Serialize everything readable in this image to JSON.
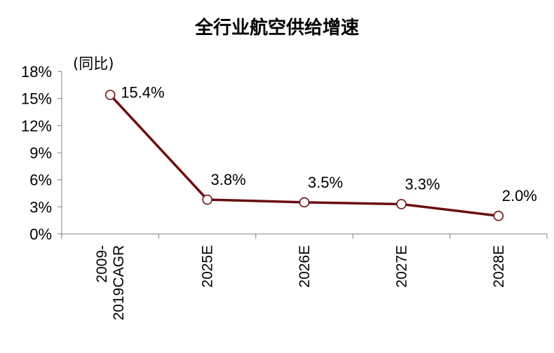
{
  "chart_data": {
    "type": "line",
    "title": "全行业航空供给增速",
    "unit_label": "(同比)",
    "categories": [
      "2009-\n2019CAGR",
      "2025E",
      "2026E",
      "2027E",
      "2028E"
    ],
    "series": [
      {
        "values": [
          15.4,
          3.8,
          3.5,
          3.3,
          2.0
        ],
        "color": "#6B0F0F"
      }
    ],
    "data_labels": [
      "15.4%",
      "3.8%",
      "3.5%",
      "3.3%",
      "2.0%"
    ],
    "yticks": [
      "0%",
      "3%",
      "6%",
      "9%",
      "12%",
      "15%",
      "18%"
    ],
    "ylim": [
      0,
      18
    ],
    "grid": false,
    "legend": "none"
  }
}
